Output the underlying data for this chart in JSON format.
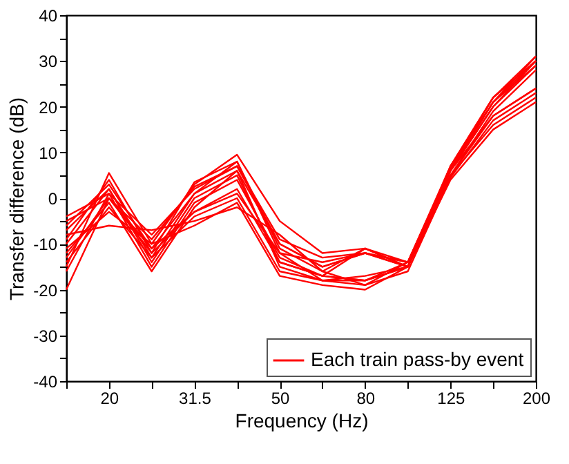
{
  "chart_data": {
    "type": "line",
    "xlabel": "Frequency (Hz)",
    "ylabel": "Transfer difference (dB)",
    "categories": [
      null,
      "20",
      null,
      "31.5",
      null,
      "50",
      null,
      "80",
      null,
      "125",
      null,
      "200"
    ],
    "ylim": [
      -40,
      40
    ],
    "yticks": [
      -40,
      {
        "value": -35,
        "label": null
      },
      -30,
      {
        "value": -25,
        "label": null
      },
      -20,
      {
        "value": -15,
        "label": null
      },
      -10,
      {
        "value": -5,
        "label": null
      },
      0,
      {
        "value": 5,
        "label": null
      },
      10,
      {
        "value": 15,
        "label": null
      },
      20,
      {
        "value": 25,
        "label": null
      },
      30,
      {
        "value": 35,
        "label": null
      },
      40
    ],
    "legend": "bottom right",
    "grid": false,
    "marker": "none",
    "line_style": "solid",
    "series": [
      {
        "name": "Each train pass-by event",
        "color": "#ff0000",
        "values": [
          -20,
          0,
          -12,
          -3,
          1,
          -12,
          -18,
          -18,
          -15,
          6,
          18,
          24
        ]
      },
      {
        "color": "#ff0000",
        "values": [
          -15,
          5.5,
          -10,
          3,
          9.5,
          -5,
          -12,
          -11,
          -14,
          7,
          22,
          31
        ]
      },
      {
        "color": "#ff0000",
        "values": [
          -4,
          1,
          -8,
          2,
          7,
          -10,
          -15,
          -12,
          -15,
          6,
          20,
          30
        ]
      },
      {
        "color": "#ff0000",
        "values": [
          -8,
          -6,
          -7,
          -5,
          -2,
          -8,
          -16,
          -19,
          -14,
          5,
          16,
          22
        ]
      },
      {
        "color": "#ff0000",
        "values": [
          -10,
          2,
          -14,
          0,
          5,
          -14,
          -17,
          -11,
          -15,
          7,
          21,
          29
        ]
      },
      {
        "color": "#ff0000",
        "values": [
          -12,
          -1,
          -16,
          -2,
          6,
          -15,
          -18,
          -17,
          -15,
          5,
          19,
          28
        ]
      },
      {
        "color": "#ff0000",
        "values": [
          -6,
          3,
          -11,
          1,
          8,
          -12,
          -14,
          -12,
          -14,
          6.5,
          21,
          30
        ]
      },
      {
        "color": "#ff0000",
        "values": [
          -14,
          -2,
          -13,
          -4,
          0,
          -16,
          -18,
          -19,
          -16,
          4.5,
          17,
          23
        ]
      },
      {
        "color": "#ff0000",
        "values": [
          -5,
          0,
          -9,
          2.5,
          7,
          -9,
          -13,
          -12,
          -15,
          7,
          22,
          30
        ]
      },
      {
        "color": "#ff0000",
        "values": [
          -16,
          1,
          -15,
          -1,
          4,
          -13,
          -17,
          -18,
          -14,
          6,
          20,
          29
        ]
      },
      {
        "color": "#ff0000",
        "values": [
          -9,
          4,
          -12,
          3.5,
          8,
          -11,
          -16,
          -11,
          -15,
          6,
          21,
          31
        ]
      },
      {
        "color": "#ff0000",
        "values": [
          -11,
          -3,
          -10,
          -6,
          -1,
          -17,
          -19,
          -20,
          -15,
          4,
          15,
          21
        ]
      },
      {
        "color": "#ff0000",
        "values": [
          -7,
          2,
          -13,
          1,
          6,
          -10,
          -15,
          -12,
          -14,
          6.5,
          22,
          30
        ]
      },
      {
        "color": "#ff0000",
        "values": [
          -13,
          0,
          -11,
          -3,
          2,
          -14,
          -17,
          -18,
          -15,
          5,
          18,
          24
        ]
      }
    ]
  }
}
